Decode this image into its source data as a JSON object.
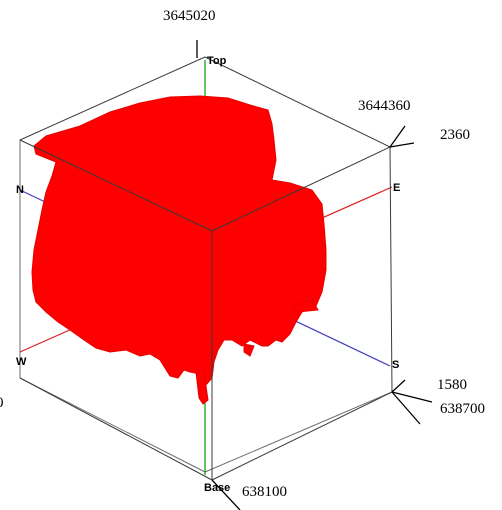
{
  "colors": {
    "volume": "#ff0000",
    "vertical_axis": "#00a000",
    "ns_axis": "#4040c0",
    "ew_axis": "#e02020",
    "box_edge": "#6e6e6e"
  },
  "coordinate_labels": {
    "top_northing": "3645020",
    "right_northing": "3644360",
    "upper_elevation": "2360",
    "lower_elevation": "1580",
    "right_easting": "638700",
    "bottom_easting": "638100",
    "left_cut": "0"
  },
  "direction_labels": {
    "top": "Top",
    "base": "Base",
    "north": "N",
    "south": "S",
    "east": "E",
    "west": "W"
  }
}
